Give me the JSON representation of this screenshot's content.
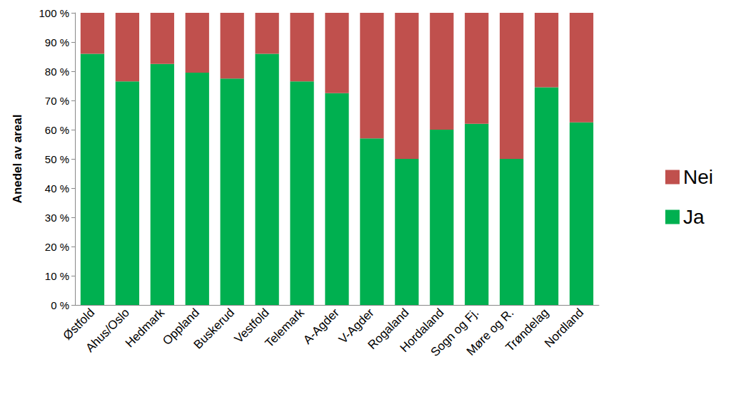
{
  "chart_data": {
    "type": "bar",
    "stacked": true,
    "y_label": "Anedel av areal",
    "categories": [
      "Østfold",
      "Ahus/Oslo",
      "Hedmark",
      "Oppland",
      "Buskerud",
      "Vestfold",
      "Telemark",
      "A-Agder",
      "V-Agder",
      "Rogaland",
      "Hordaland",
      "Sogn og Fj.",
      "Møre og R.",
      "Trøndelag",
      "Nordland"
    ],
    "series": [
      {
        "name": "Ja",
        "color": "#00b050",
        "values": [
          86,
          76.5,
          82.5,
          79.5,
          77.5,
          86,
          76.5,
          72.5,
          57,
          50,
          60,
          62,
          50,
          74.5,
          62.5
        ]
      },
      {
        "name": "Nei",
        "color": "#c0504d",
        "values": [
          14,
          23.5,
          17.5,
          20.5,
          22.5,
          14,
          23.5,
          27.5,
          43,
          50,
          40,
          38,
          50,
          25.5,
          37.5
        ]
      }
    ],
    "ylim": [
      0,
      100
    ],
    "yticks": [
      {
        "value": 0,
        "label": "0 %"
      },
      {
        "value": 10,
        "label": "10 %"
      },
      {
        "value": 20,
        "label": "20 %"
      },
      {
        "value": 30,
        "label": "30 %"
      },
      {
        "value": 40,
        "label": "40 %"
      },
      {
        "value": 50,
        "label": "50 %"
      },
      {
        "value": 60,
        "label": "60 %"
      },
      {
        "value": 70,
        "label": "70 %"
      },
      {
        "value": 80,
        "label": "80 %"
      },
      {
        "value": 90,
        "label": "90 %"
      },
      {
        "value": 100,
        "label": "100 %"
      }
    ],
    "grid": false,
    "legend": "right"
  }
}
